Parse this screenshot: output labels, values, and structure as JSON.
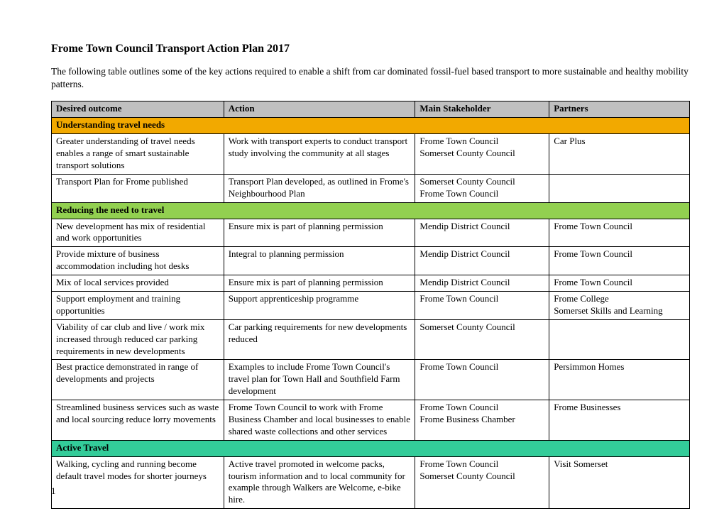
{
  "title": "Frome Town Council Transport Action Plan 2017",
  "intro": "The following table outlines some of the key actions required to enable a shift from car dominated fossil-fuel based transport to more sustainable and healthy mobility patterns.",
  "page_num": "1",
  "colors": {
    "header_bg": "#c0c0c0",
    "section1_bg": "#f2a900",
    "section2_bg": "#92d050",
    "section3_bg": "#33cc99",
    "border": "#000000",
    "text": "#000000",
    "page_bg": "#ffffff"
  },
  "columns": {
    "outcome": "Desired outcome",
    "action": "Action",
    "stakeholder": "Main Stakeholder",
    "partners": "Partners"
  },
  "sections": {
    "s1": {
      "label": "Understanding travel needs",
      "bg_key": "section1_bg"
    },
    "s2": {
      "label": "Reducing the need to travel",
      "bg_key": "section2_bg"
    },
    "s3": {
      "label": "Active Travel",
      "bg_key": "section3_bg"
    }
  },
  "rows": {
    "r1": {
      "outcome": "Greater understanding of travel needs enables a range of smart sustainable transport solutions",
      "action": "Work with transport experts to conduct transport study involving the community at all stages",
      "stakeholder": "Frome Town Council\nSomerset County Council",
      "partners": "Car Plus"
    },
    "r2": {
      "outcome": "Transport Plan for Frome published",
      "action": "Transport Plan developed, as outlined in Frome's Neighbourhood Plan",
      "stakeholder": "Somerset County Council\nFrome Town Council",
      "partners": ""
    },
    "r3": {
      "outcome": "New development has mix of residential and work opportunities",
      "action": "Ensure mix is part of planning permission",
      "stakeholder": "Mendip District Council",
      "partners": "Frome Town Council"
    },
    "r4": {
      "outcome": "Provide mixture of business accommodation including hot desks",
      "action": "Integral to planning permission",
      "stakeholder": "Mendip District Council",
      "partners": "Frome Town Council"
    },
    "r5": {
      "outcome": "Mix of local services provided",
      "action": "Ensure mix is part of planning permission",
      "stakeholder": "Mendip District Council",
      "partners": "Frome Town Council"
    },
    "r6": {
      "outcome": "Support employment and training opportunities",
      "action": "Support apprenticeship programme",
      "stakeholder": "Frome Town Council",
      "partners": "Frome College\nSomerset Skills and Learning"
    },
    "r7": {
      "outcome": "Viability of car club and live / work mix increased through reduced car parking requirements in new developments",
      "action": "Car parking requirements for new developments reduced",
      "stakeholder": "Somerset County Council",
      "partners": ""
    },
    "r8": {
      "outcome": "Best practice demonstrated in range of developments and projects",
      "action": "Examples to include Frome Town Council's travel plan for Town Hall and Southfield Farm development",
      "stakeholder": "Frome Town Council",
      "partners": "Persimmon Homes"
    },
    "r9": {
      "outcome": "Streamlined business services such as waste and local sourcing reduce lorry movements",
      "action": "Frome Town Council to work with Frome Business Chamber and local businesses to enable shared waste collections and other services",
      "stakeholder": "Frome Town Council\nFrome Business Chamber",
      "partners": "Frome Businesses"
    },
    "r10": {
      "outcome": "Walking, cycling and running become default travel modes for shorter journeys",
      "action": "Active travel promoted in welcome packs, tourism information and to local community for example through Walkers are Welcome, e-bike hire.",
      "stakeholder": "Frome Town Council\nSomerset County Council",
      "partners": "Visit Somerset"
    }
  }
}
